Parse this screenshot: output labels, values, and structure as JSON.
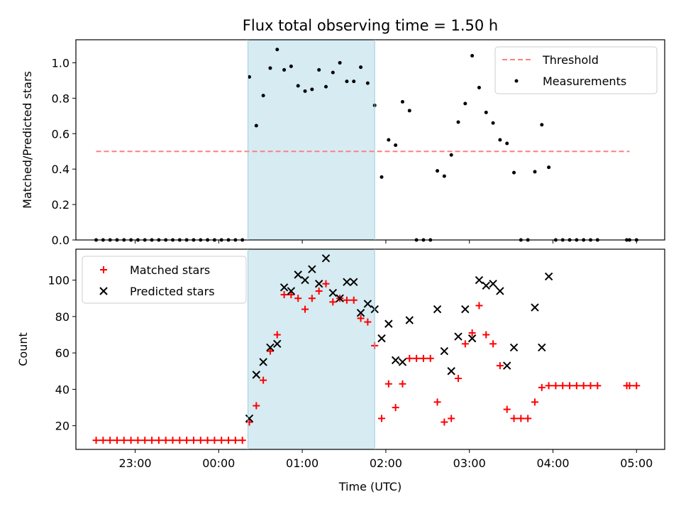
{
  "chart_data": [
    {
      "type": "scatter",
      "title": "Flux total observing time = 1.50 h",
      "ylabel": "Matched/Predicted stars",
      "xlabel": "",
      "ylim": [
        0,
        1.13
      ],
      "yticks": [
        "0.0",
        "0.2",
        "0.4",
        "0.6",
        "0.8",
        "1.0"
      ],
      "xticks": [
        "23:00",
        "00:00",
        "01:00",
        "02:00",
        "03:00",
        "04:00",
        "05:00"
      ],
      "shaded_interval": [
        "00:21",
        "01:52"
      ],
      "shade_color": "#add8e6",
      "legend": {
        "location": "upper-right",
        "entries": [
          "Threshold",
          "Measurements"
        ]
      },
      "threshold": {
        "name": "Threshold",
        "y": 0.5,
        "x_range": [
          "22:32",
          "04:55"
        ],
        "color": "#ff7f7f",
        "style": "dashed"
      },
      "series": [
        {
          "name": "Measurements",
          "color": "#000000",
          "points": [
            [
              "22:32",
              0
            ],
            [
              "22:37",
              0
            ],
            [
              "22:42",
              0
            ],
            [
              "22:47",
              0
            ],
            [
              "22:52",
              0
            ],
            [
              "22:57",
              0
            ],
            [
              "23:02",
              0
            ],
            [
              "23:07",
              0
            ],
            [
              "23:12",
              0
            ],
            [
              "23:17",
              0
            ],
            [
              "23:22",
              0
            ],
            [
              "23:27",
              0
            ],
            [
              "23:32",
              0
            ],
            [
              "23:37",
              0
            ],
            [
              "23:42",
              0
            ],
            [
              "23:47",
              0
            ],
            [
              "23:52",
              0
            ],
            [
              "23:57",
              0
            ],
            [
              "00:02",
              0
            ],
            [
              "00:07",
              0
            ],
            [
              "00:12",
              0
            ],
            [
              "00:17",
              0
            ],
            [
              "00:22",
              0.92
            ],
            [
              "00:27",
              0.645
            ],
            [
              "00:32",
              0.815
            ],
            [
              "00:37",
              0.97
            ],
            [
              "00:42",
              1.075
            ],
            [
              "00:47",
              0.96
            ],
            [
              "00:52",
              0.98
            ],
            [
              "00:57",
              0.87
            ],
            [
              "01:02",
              0.84
            ],
            [
              "01:07",
              0.85
            ],
            [
              "01:12",
              0.96
            ],
            [
              "01:17",
              0.865
            ],
            [
              "01:22",
              0.945
            ],
            [
              "01:27",
              1.0
            ],
            [
              "01:32",
              0.895
            ],
            [
              "01:37",
              0.895
            ],
            [
              "01:42",
              0.975
            ],
            [
              "01:47",
              0.885
            ],
            [
              "01:52",
              0.76
            ],
            [
              "01:57",
              0.355
            ],
            [
              "02:02",
              0.565
            ],
            [
              "02:07",
              0.535
            ],
            [
              "02:12",
              0.78
            ],
            [
              "02:17",
              0.73
            ],
            [
              "02:22",
              0
            ],
            [
              "02:27",
              0
            ],
            [
              "02:32",
              0
            ],
            [
              "02:37",
              0.39
            ],
            [
              "02:42",
              0.36
            ],
            [
              "02:47",
              0.48
            ],
            [
              "02:52",
              0.665
            ],
            [
              "02:57",
              0.77
            ],
            [
              "03:02",
              1.04
            ],
            [
              "03:07",
              0.86
            ],
            [
              "03:12",
              0.72
            ],
            [
              "03:17",
              0.66
            ],
            [
              "03:22",
              0.565
            ],
            [
              "03:27",
              0.545
            ],
            [
              "03:32",
              0.38
            ],
            [
              "03:37",
              0
            ],
            [
              "03:42",
              0
            ],
            [
              "03:47",
              0.385
            ],
            [
              "03:52",
              0.65
            ],
            [
              "03:57",
              0.41
            ],
            [
              "04:02",
              0
            ],
            [
              "04:07",
              0
            ],
            [
              "04:12",
              0
            ],
            [
              "04:17",
              0
            ],
            [
              "04:22",
              0
            ],
            [
              "04:27",
              0
            ],
            [
              "04:32",
              0
            ],
            [
              "04:53",
              0
            ],
            [
              "04:55",
              0
            ],
            [
              "05:00",
              0
            ]
          ]
        }
      ]
    },
    {
      "type": "scatter",
      "title": "",
      "ylabel": "Count",
      "xlabel": "Time (UTC)",
      "ylim": [
        7,
        117
      ],
      "yticks": [
        "20",
        "40",
        "60",
        "80",
        "100"
      ],
      "xticks": [
        "23:00",
        "00:00",
        "01:00",
        "02:00",
        "03:00",
        "04:00",
        "05:00"
      ],
      "shaded_interval": [
        "00:21",
        "01:52"
      ],
      "shade_color": "#add8e6",
      "legend": {
        "location": "upper-left",
        "entries": [
          "Matched stars",
          "Predicted stars"
        ]
      },
      "series": [
        {
          "name": "Matched stars",
          "marker": "plus",
          "color": "#ff0000",
          "points": [
            [
              "22:32",
              12
            ],
            [
              "22:37",
              12
            ],
            [
              "22:42",
              12
            ],
            [
              "22:47",
              12
            ],
            [
              "22:52",
              12
            ],
            [
              "22:57",
              12
            ],
            [
              "23:02",
              12
            ],
            [
              "23:07",
              12
            ],
            [
              "23:12",
              12
            ],
            [
              "23:17",
              12
            ],
            [
              "23:22",
              12
            ],
            [
              "23:27",
              12
            ],
            [
              "23:32",
              12
            ],
            [
              "23:37",
              12
            ],
            [
              "23:42",
              12
            ],
            [
              "23:47",
              12
            ],
            [
              "23:52",
              12
            ],
            [
              "23:57",
              12
            ],
            [
              "00:02",
              12
            ],
            [
              "00:07",
              12
            ],
            [
              "00:12",
              12
            ],
            [
              "00:17",
              12
            ],
            [
              "00:22",
              22
            ],
            [
              "00:27",
              31
            ],
            [
              "00:32",
              45
            ],
            [
              "00:37",
              61
            ],
            [
              "00:42",
              70
            ],
            [
              "00:47",
              92
            ],
            [
              "00:52",
              92
            ],
            [
              "00:57",
              90
            ],
            [
              "01:02",
              84
            ],
            [
              "01:07",
              90
            ],
            [
              "01:12",
              94
            ],
            [
              "01:17",
              98
            ],
            [
              "01:22",
              88
            ],
            [
              "01:27",
              90
            ],
            [
              "01:32",
              89
            ],
            [
              "01:37",
              89
            ],
            [
              "01:42",
              79
            ],
            [
              "01:47",
              77
            ],
            [
              "01:52",
              64
            ],
            [
              "01:57",
              24
            ],
            [
              "02:02",
              43
            ],
            [
              "02:07",
              30
            ],
            [
              "02:12",
              43
            ],
            [
              "02:17",
              57
            ],
            [
              "02:22",
              57
            ],
            [
              "02:27",
              57
            ],
            [
              "02:32",
              57
            ],
            [
              "02:37",
              33
            ],
            [
              "02:42",
              22
            ],
            [
              "02:47",
              24
            ],
            [
              "02:52",
              46
            ],
            [
              "02:57",
              65
            ],
            [
              "03:02",
              71
            ],
            [
              "03:07",
              86
            ],
            [
              "03:12",
              70
            ],
            [
              "03:17",
              65
            ],
            [
              "03:22",
              53
            ],
            [
              "03:27",
              29
            ],
            [
              "03:32",
              24
            ],
            [
              "03:37",
              24
            ],
            [
              "03:42",
              24
            ],
            [
              "03:47",
              33
            ],
            [
              "03:52",
              41
            ],
            [
              "03:57",
              42
            ],
            [
              "04:02",
              42
            ],
            [
              "04:07",
              42
            ],
            [
              "04:12",
              42
            ],
            [
              "04:17",
              42
            ],
            [
              "04:22",
              42
            ],
            [
              "04:27",
              42
            ],
            [
              "04:32",
              42
            ],
            [
              "04:53",
              42
            ],
            [
              "04:55",
              42
            ],
            [
              "05:00",
              42
            ]
          ]
        },
        {
          "name": "Predicted stars",
          "marker": "x",
          "color": "#000000",
          "points": [
            [
              "00:22",
              24
            ],
            [
              "00:27",
              48
            ],
            [
              "00:32",
              55
            ],
            [
              "00:37",
              63
            ],
            [
              "00:42",
              65
            ],
            [
              "00:47",
              96
            ],
            [
              "00:52",
              94
            ],
            [
              "00:57",
              103
            ],
            [
              "01:02",
              100
            ],
            [
              "01:07",
              106
            ],
            [
              "01:12",
              98
            ],
            [
              "01:17",
              112
            ],
            [
              "01:22",
              93
            ],
            [
              "01:27",
              90
            ],
            [
              "01:32",
              99
            ],
            [
              "01:37",
              99
            ],
            [
              "01:42",
              82
            ],
            [
              "01:47",
              87
            ],
            [
              "01:52",
              84
            ],
            [
              "01:57",
              68
            ],
            [
              "02:02",
              76
            ],
            [
              "02:07",
              56
            ],
            [
              "02:12",
              55
            ],
            [
              "02:17",
              78
            ],
            [
              "02:37",
              84
            ],
            [
              "02:42",
              61
            ],
            [
              "02:47",
              50
            ],
            [
              "02:52",
              69
            ],
            [
              "02:57",
              84
            ],
            [
              "03:02",
              68
            ],
            [
              "03:07",
              100
            ],
            [
              "03:12",
              97
            ],
            [
              "03:17",
              98
            ],
            [
              "03:22",
              94
            ],
            [
              "03:27",
              53
            ],
            [
              "03:32",
              63
            ],
            [
              "03:47",
              85
            ],
            [
              "03:52",
              63
            ],
            [
              "03:57",
              102
            ]
          ]
        }
      ]
    }
  ]
}
